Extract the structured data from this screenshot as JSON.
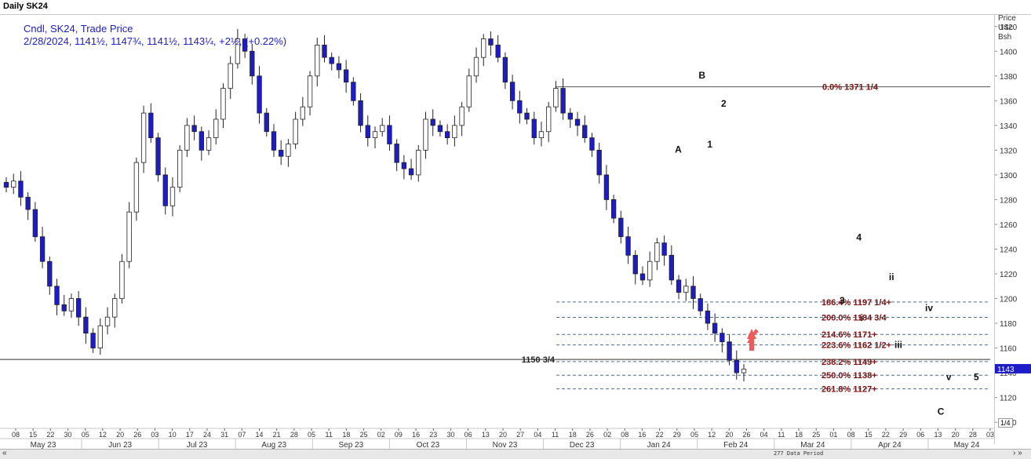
{
  "window": {
    "title": "Daily SK24",
    "data_period": "277 Data Period",
    "subpanel_label": "1/4",
    "nav_left": "«",
    "nav_right": "› »"
  },
  "legend": {
    "line1": "Cndl, SK24, Trade Price",
    "line2": "2/28/2024, 1141½, 1147¾, 1141½, 1143¼, +2½, (+0.22%)"
  },
  "price_axis": {
    "title_lines": [
      "Price",
      "USc",
      "Bsh"
    ],
    "last_price_label": "1143"
  },
  "colors": {
    "up_candle": "#ffffff",
    "down_candle": "#1c1cc8",
    "fib_text": "#7a1010",
    "fib_line": "#4a6f94",
    "arrow": "#f05a5a"
  },
  "chart_data": {
    "type": "candlestick",
    "ylim": [
      1095,
      1430
    ],
    "y_ticks": [
      1100,
      1120,
      1140,
      1160,
      1180,
      1200,
      1220,
      1240,
      1260,
      1280,
      1300,
      1320,
      1340,
      1360,
      1380,
      1400,
      1420
    ],
    "x_day_ticks": [
      "08",
      "15",
      "22",
      "30",
      "05",
      "12",
      "20",
      "26",
      "03",
      "10",
      "17",
      "24",
      "31",
      "07",
      "14",
      "21",
      "28",
      "05",
      "11",
      "18",
      "25",
      "02",
      "09",
      "16",
      "23",
      "30",
      "06",
      "13",
      "20",
      "27",
      "04",
      "11",
      "18",
      "26",
      "02",
      "08",
      "16",
      "22",
      "29",
      "05",
      "12",
      "20",
      "26",
      "04",
      "11",
      "18",
      "25",
      "01",
      "08",
      "15",
      "22",
      "29",
      "06",
      "13",
      "20",
      "28",
      "03"
    ],
    "x_month_labels": [
      "May 23",
      "Jun 23",
      "Jul 23",
      "Aug 23",
      "Sep 23",
      "Oct 23",
      "Nov 23",
      "Dec 23",
      "Jan 24",
      "Feb 24",
      "Mar 24",
      "Apr 24",
      "May 24"
    ],
    "price_path": [
      1290,
      1295,
      1282,
      1272,
      1250,
      1230,
      1210,
      1195,
      1190,
      1200,
      1185,
      1172,
      1160,
      1178,
      1185,
      1200,
      1230,
      1270,
      1310,
      1350,
      1330,
      1300,
      1275,
      1290,
      1320,
      1340,
      1335,
      1320,
      1330,
      1345,
      1370,
      1390,
      1410,
      1400,
      1380,
      1350,
      1335,
      1320,
      1315,
      1325,
      1345,
      1355,
      1380,
      1405,
      1395,
      1390,
      1385,
      1375,
      1360,
      1340,
      1330,
      1335,
      1340,
      1325,
      1310,
      1305,
      1300,
      1320,
      1345,
      1340,
      1335,
      1330,
      1340,
      1355,
      1380,
      1395,
      1410,
      1405,
      1395,
      1375,
      1360,
      1350,
      1345,
      1330,
      1335,
      1355,
      1370,
      1350,
      1345,
      1340,
      1330,
      1320,
      1300,
      1280,
      1265,
      1250,
      1235,
      1220,
      1215,
      1230,
      1245,
      1235,
      1215,
      1205,
      1210,
      1200,
      1190,
      1180,
      1172,
      1165,
      1150,
      1140,
      1143
    ],
    "flat_level": {
      "value": 1150.75,
      "label": "1150 3/4"
    },
    "top_level": {
      "label": "0.0%",
      "value_label": "1371 1/4",
      "value": 1371.25
    },
    "fib_levels": [
      {
        "pct": "186.4%",
        "value_label": "1197 1/4+",
        "value": 1197.25
      },
      {
        "pct": "200.0%",
        "value_label": "1184 3/4",
        "value": 1184.75
      },
      {
        "pct": "214.6%",
        "value_label": "1171+",
        "value": 1171
      },
      {
        "pct": "223.6%",
        "value_label": "1162 1/2+",
        "value": 1162.5
      },
      {
        "pct": "238.2%",
        "value_label": "1149+",
        "value": 1149
      },
      {
        "pct": "250.0%",
        "value_label": "1138+",
        "value": 1138
      },
      {
        "pct": "261.8%",
        "value_label": "1127+",
        "value": 1127
      }
    ],
    "wave_labels": [
      {
        "text": "A",
        "t": 0.684,
        "price": 1318
      },
      {
        "text": "B",
        "t": 0.708,
        "price": 1378
      },
      {
        "text": "1",
        "t": 0.716,
        "price": 1322
      },
      {
        "text": "2",
        "t": 0.73,
        "price": 1355
      },
      {
        "text": "3",
        "t": 0.85,
        "price": 1196
      },
      {
        "text": "4",
        "t": 0.867,
        "price": 1247
      },
      {
        "text": "i",
        "t": 0.87,
        "price": 1182
      },
      {
        "text": "ii",
        "t": 0.9,
        "price": 1215
      },
      {
        "text": "iii",
        "t": 0.907,
        "price": 1160
      },
      {
        "text": "iv",
        "t": 0.938,
        "price": 1190
      },
      {
        "text": "v",
        "t": 0.958,
        "price": 1134
      },
      {
        "text": "5",
        "t": 0.986,
        "price": 1134
      },
      {
        "text": "C",
        "t": 0.95,
        "price": 1106
      }
    ]
  }
}
